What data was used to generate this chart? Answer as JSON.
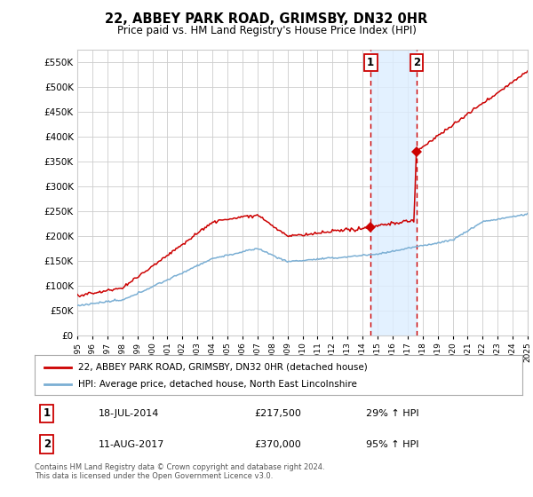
{
  "title": "22, ABBEY PARK ROAD, GRIMSBY, DN32 0HR",
  "subtitle": "Price paid vs. HM Land Registry's House Price Index (HPI)",
  "ytick_values": [
    0,
    50000,
    100000,
    150000,
    200000,
    250000,
    300000,
    350000,
    400000,
    450000,
    500000,
    550000
  ],
  "ylim": [
    0,
    575000
  ],
  "xlim_start": 1995,
  "xlim_end": 2025,
  "sale1_date": 2014.54,
  "sale1_price": 217500,
  "sale1_label": "1",
  "sale1_text": "18-JUL-2014",
  "sale1_amount": "£217,500",
  "sale1_hpi": "29% ↑ HPI",
  "sale2_date": 2017.61,
  "sale2_price": 370000,
  "sale2_label": "2",
  "sale2_text": "11-AUG-2017",
  "sale2_amount": "£370,000",
  "sale2_hpi": "95% ↑ HPI",
  "legend_line1": "22, ABBEY PARK ROAD, GRIMSBY, DN32 0HR (detached house)",
  "legend_line2": "HPI: Average price, detached house, North East Lincolnshire",
  "footer1": "Contains HM Land Registry data © Crown copyright and database right 2024.",
  "footer2": "This data is licensed under the Open Government Licence v3.0.",
  "property_color": "#cc0000",
  "hpi_color": "#7bafd4",
  "shading_color": "#ddeeff",
  "grid_color": "#cccccc",
  "bg_color": "#ffffff"
}
